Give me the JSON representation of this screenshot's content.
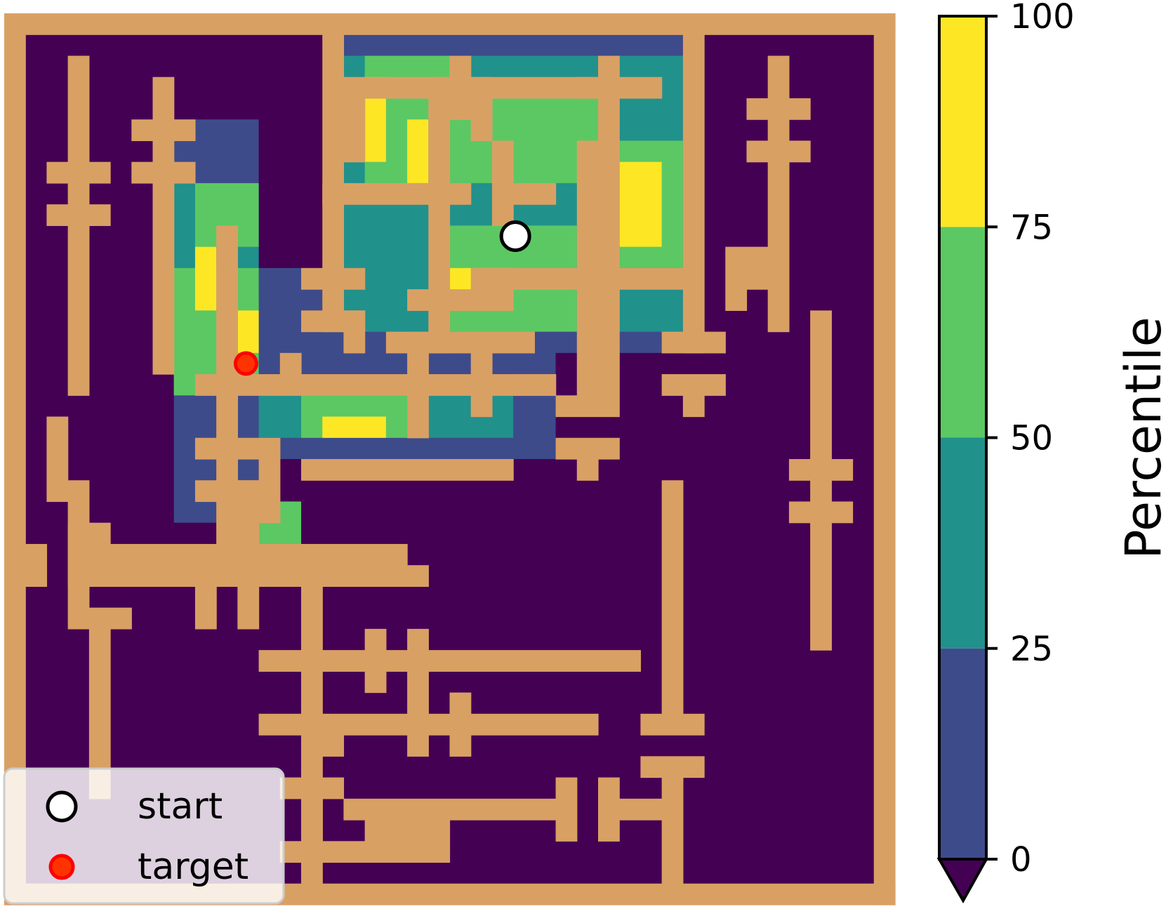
{
  "chart_data": {
    "type": "heatmap",
    "title": "",
    "description_free": true,
    "colors": {
      "wall": "#d9a064",
      "free": "#440154",
      "bins": [
        "#3e4b8a",
        "#21918c",
        "#5cc863",
        "#fde725"
      ]
    },
    "colorbar": {
      "label": "Percentile",
      "ticks": [
        "0",
        "25",
        "50",
        "75",
        "100"
      ],
      "tick_values": [
        0,
        25,
        50,
        75,
        100
      ],
      "range": [
        0,
        100
      ],
      "extend": "min"
    },
    "legend": {
      "placement": "lower-left",
      "entries": [
        {
          "label": "start",
          "marker": "circle",
          "fill": "#ffffff",
          "edge": "#000000"
        },
        {
          "label": "target",
          "marker": "circle",
          "fill": "#ff3300",
          "edge": "#ff0000"
        }
      ]
    },
    "grid_size": [
      42,
      42
    ],
    "markers": {
      "start": {
        "col": 24.1,
        "row": 10.5
      },
      "target": {
        "col": 11.4,
        "row": 16.5
      }
    },
    "walls": [
      [
        0,
        0,
        42,
        1
      ],
      [
        0,
        0,
        1,
        42
      ],
      [
        41,
        0,
        1,
        42
      ],
      [
        0,
        41,
        42,
        1
      ],
      [
        15,
        1,
        1,
        14
      ],
      [
        32,
        1,
        1,
        15
      ],
      [
        15,
        8,
        7,
        1
      ],
      [
        16,
        3,
        1,
        4
      ],
      [
        17,
        3,
        14,
        1
      ],
      [
        20,
        3,
        1,
        13
      ],
      [
        21,
        2,
        1,
        3
      ],
      [
        22,
        3,
        1,
        3
      ],
      [
        27,
        3,
        1,
        1
      ],
      [
        23,
        6,
        1,
        4
      ],
      [
        24,
        8,
        2,
        1
      ],
      [
        27,
        6,
        1,
        12
      ],
      [
        22,
        12,
        10,
        1
      ],
      [
        19,
        13,
        5,
        1
      ],
      [
        14,
        12,
        3,
        1
      ],
      [
        14,
        14,
        3,
        1
      ],
      [
        16,
        14,
        1,
        2
      ],
      [
        18,
        15,
        7,
        1
      ],
      [
        19,
        15,
        1,
        5
      ],
      [
        9,
        17,
        17,
        1
      ],
      [
        13,
        16,
        1,
        1
      ],
      [
        22,
        16,
        1,
        3
      ],
      [
        24,
        17,
        2,
        1
      ],
      [
        28,
        2,
        1,
        16
      ],
      [
        26,
        18,
        3,
        1
      ],
      [
        26,
        20,
        3,
        1
      ],
      [
        27,
        21,
        1,
        1
      ],
      [
        31,
        15,
        3,
        1
      ],
      [
        31,
        17,
        3,
        1
      ],
      [
        32,
        18,
        1,
        1
      ],
      [
        34,
        11,
        1,
        3
      ],
      [
        35,
        12,
        1,
        1
      ],
      [
        35,
        11,
        1,
        1
      ],
      [
        36,
        2,
        1,
        13
      ],
      [
        35,
        4,
        3,
        1
      ],
      [
        35,
        6,
        3,
        1
      ],
      [
        38,
        14,
        1,
        16
      ],
      [
        37,
        21,
        3,
        1
      ],
      [
        37,
        23,
        3,
        1
      ],
      [
        10,
        10,
        1,
        16
      ],
      [
        9,
        20,
        3,
        1
      ],
      [
        9,
        22,
        3,
        1
      ],
      [
        11,
        22,
        1,
        4
      ],
      [
        12,
        20,
        1,
        4
      ],
      [
        14,
        21,
        10,
        1
      ],
      [
        2,
        19,
        1,
        4
      ],
      [
        1,
        25,
        1,
        2
      ],
      [
        3,
        22,
        1,
        6
      ],
      [
        3,
        24,
        2,
        3
      ],
      [
        5,
        26,
        15,
        1
      ],
      [
        5,
        25,
        14,
        1
      ],
      [
        9,
        27,
        1,
        2
      ],
      [
        11,
        27,
        1,
        2
      ],
      [
        14,
        27,
        1,
        12
      ],
      [
        12,
        30,
        18,
        1
      ],
      [
        17,
        29,
        1,
        3
      ],
      [
        19,
        29,
        1,
        6
      ],
      [
        12,
        33,
        16,
        1
      ],
      [
        21,
        32,
        1,
        3
      ],
      [
        14,
        34,
        2,
        1
      ],
      [
        31,
        22,
        1,
        11
      ],
      [
        30,
        33,
        3,
        1
      ],
      [
        30,
        35,
        3,
        1
      ],
      [
        31,
        36,
        1,
        5
      ],
      [
        26,
        36,
        1,
        3
      ],
      [
        28,
        36,
        1,
        3
      ],
      [
        29,
        37,
        2,
        1
      ],
      [
        13,
        36,
        3,
        1
      ],
      [
        14,
        37,
        1,
        4
      ],
      [
        16,
        37,
        10,
        1
      ],
      [
        17,
        38,
        4,
        1
      ],
      [
        13,
        39,
        8,
        1
      ],
      [
        3,
        28,
        3,
        1
      ],
      [
        4,
        29,
        1,
        8
      ],
      [
        3,
        2,
        1,
        16
      ],
      [
        2,
        7,
        3,
        1
      ],
      [
        2,
        9,
        3,
        1
      ],
      [
        7,
        3,
        1,
        14
      ],
      [
        6,
        5,
        3,
        1
      ],
      [
        6,
        7,
        3,
        1
      ]
    ],
    "heat_regions": [
      {
        "bin": 0,
        "rect": [
          8,
          5,
          4,
          19
        ]
      },
      {
        "bin": 0,
        "rect": [
          16,
          1,
          16,
          15
        ]
      },
      {
        "bin": 0,
        "rect": [
          11,
          13,
          15,
          8
        ]
      },
      {
        "bin": 0,
        "rect": [
          12,
          12,
          6,
          3
        ]
      },
      {
        "bin": 1,
        "rect": [
          8,
          8,
          4,
          10
        ]
      },
      {
        "bin": 1,
        "rect": [
          16,
          2,
          16,
          13
        ]
      },
      {
        "bin": 1,
        "rect": [
          12,
          18,
          12,
          2
        ]
      },
      {
        "bin": 1,
        "rect": [
          11,
          23,
          3,
          3
        ]
      },
      {
        "bin": 2,
        "rect": [
          9,
          8,
          3,
          3
        ]
      },
      {
        "bin": 2,
        "rect": [
          17,
          2,
          4,
          7
        ]
      },
      {
        "bin": 2,
        "rect": [
          21,
          4,
          7,
          4
        ]
      },
      {
        "bin": 2,
        "rect": [
          28,
          6,
          4,
          6
        ]
      },
      {
        "bin": 2,
        "rect": [
          21,
          10,
          6,
          5
        ]
      },
      {
        "bin": 2,
        "rect": [
          14,
          18,
          5,
          2
        ]
      },
      {
        "bin": 2,
        "rect": [
          11,
          23,
          3,
          2
        ]
      },
      {
        "bin": 2,
        "rect": [
          8,
          12,
          4,
          6
        ]
      },
      {
        "bin": 3,
        "rect": [
          17,
          3,
          1,
          4
        ]
      },
      {
        "bin": 3,
        "rect": [
          19,
          5,
          1,
          3
        ]
      },
      {
        "bin": 3,
        "rect": [
          21,
          12,
          3,
          2
        ]
      },
      {
        "bin": 3,
        "rect": [
          29,
          7,
          2,
          4
        ]
      },
      {
        "bin": 3,
        "rect": [
          9,
          11,
          1,
          3
        ]
      },
      {
        "bin": 3,
        "rect": [
          15,
          19,
          3,
          1
        ]
      },
      {
        "bin": 3,
        "rect": [
          11,
          14,
          1,
          2
        ]
      },
      {
        "bin": 3,
        "rect": [
          12,
          23,
          1,
          1
        ]
      }
    ]
  }
}
